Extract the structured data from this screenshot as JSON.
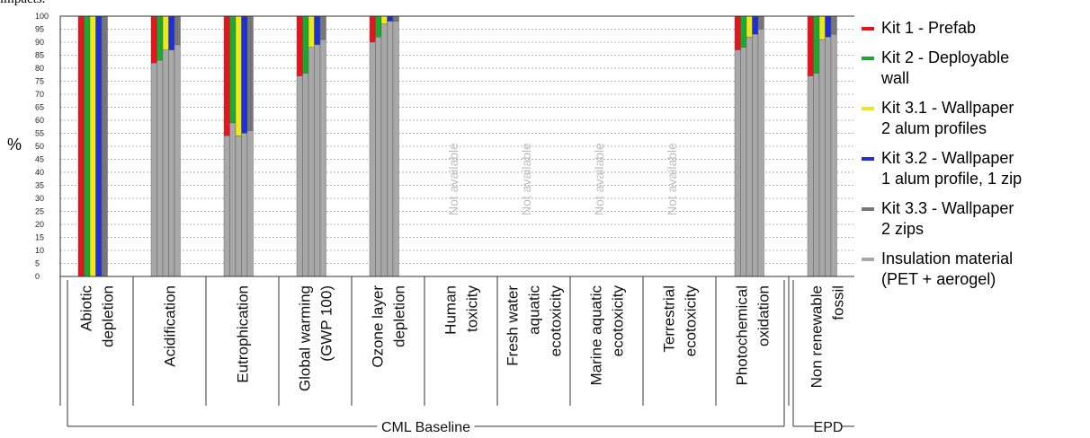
{
  "caption": "impacts.",
  "chart_data": {
    "type": "bar",
    "stacked_style": "grouped-overlay",
    "ylabel": "%",
    "ylim": [
      0,
      100
    ],
    "yticks": [
      "0",
      "5",
      "10",
      "15",
      "20",
      "25",
      "30",
      "35",
      "40",
      "45",
      "50",
      "55",
      "60",
      "65",
      "70",
      "75",
      "80",
      "85",
      "90",
      "95",
      "100"
    ],
    "grid": true,
    "legend_position": "right",
    "categories": [
      [
        "Abiotic",
        "depletion"
      ],
      [
        "Acidification"
      ],
      [
        "Eutrophication"
      ],
      [
        "Global warming",
        "(GWP 100)"
      ],
      [
        "Ozone layer",
        "depletion"
      ],
      [
        "Human",
        "toxicity"
      ],
      [
        "Fresh water",
        "aquatic",
        "ecotoxicity"
      ],
      [
        "Marine aquatic",
        "ecotoxicity"
      ],
      [
        "Terrestrial",
        "ecotoxicity"
      ],
      [
        "Photochemical",
        "oxidation"
      ],
      [
        "Non renewable",
        "fossil"
      ]
    ],
    "not_available_label": "Not available",
    "not_available": [
      false,
      false,
      false,
      false,
      false,
      true,
      true,
      true,
      true,
      false,
      false
    ],
    "series": [
      {
        "name": "Kit 1 - Prefab",
        "color": "#e8141c"
      },
      {
        "name": "Kit 2 - Deployable wall",
        "color": "#1aab2e"
      },
      {
        "name": "Kit 3.1 - Wallpaper 2 alum profiles",
        "color": "#ece81a"
      },
      {
        "name": "Kit 3.2 - Wallpaper 1 alum profile, 1 zip",
        "color": "#1f2fd8"
      },
      {
        "name": "Kit 3.3 - Wallpaper 2 zips",
        "color": "#777777"
      }
    ],
    "insulation_series": {
      "name": "Insulation material (PET + aerogel)",
      "color": "#a8a8a8"
    },
    "insulation_share": [
      [
        0,
        0,
        0,
        0,
        0
      ],
      [
        82,
        83,
        87,
        87,
        89
      ],
      [
        54,
        59,
        54,
        55,
        56
      ],
      [
        77,
        78,
        88,
        89,
        91
      ],
      [
        90,
        92,
        97,
        98,
        98
      ],
      null,
      null,
      null,
      null,
      [
        87,
        88,
        92,
        93,
        95
      ],
      [
        77,
        78,
        91,
        92,
        93
      ]
    ],
    "groups": [
      {
        "label": "CML Baseline",
        "from": 0,
        "to": 9
      },
      {
        "label": "EPD",
        "from": 10,
        "to": 10
      }
    ]
  },
  "legend": [
    {
      "line1": "Kit 1 - Prefab",
      "line2": "",
      "color": "#e8141c"
    },
    {
      "line1": "Kit 2 - Deployable",
      "line2": "wall",
      "color": "#1aab2e"
    },
    {
      "line1": "Kit 3.1 - Wallpaper",
      "line2": "2 alum profiles",
      "color": "#ece81a"
    },
    {
      "line1": "Kit 3.2 - Wallpaper",
      "line2": "1 alum profile, 1 zip",
      "color": "#1f2fd8"
    },
    {
      "line1": "Kit 3.3 - Wallpaper",
      "line2": "2 zips",
      "color": "#777777"
    },
    {
      "line1": "Insulation material",
      "line2": "(PET + aerogel)",
      "color": "#a8a8a8"
    }
  ]
}
